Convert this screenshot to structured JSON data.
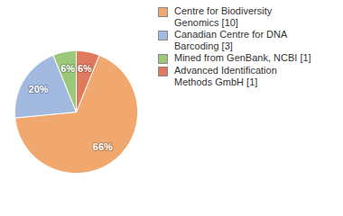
{
  "chart_data": {
    "type": "pie",
    "categories": [
      "Centre for Biodiversity Genomics [10]",
      "Canadian Centre for DNA Barcoding [3]",
      "Mined from GenBank, NCBI [1]",
      "Advanced Identification Methods GmbH [1]"
    ],
    "values": [
      66,
      20,
      6,
      6
    ],
    "value_labels": [
      "66%",
      "20%",
      "6%",
      "6%"
    ],
    "colors": [
      "#f0a86e",
      "#a2b9e0",
      "#9cc87a",
      "#e07a5f"
    ],
    "data_labels": true,
    "legend": "right"
  }
}
